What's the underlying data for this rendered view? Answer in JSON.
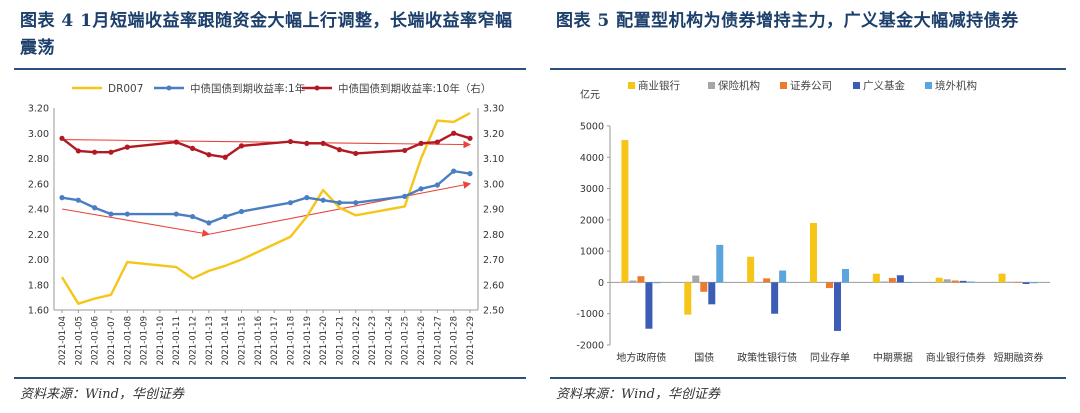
{
  "left": {
    "title": "图表 4   1月短端收益率跟随资金大幅上行调整，长端收益率窄幅震荡",
    "source": "资料来源：Wind，华创证券"
  },
  "right": {
    "title": "图表 5   配置型机构为债券增持主力，广义基金大幅减持债券",
    "source": "资料来源：Wind，华创证券"
  },
  "colors": {
    "dr007": "#f5c518",
    "cgb1y": "#4a7ec2",
    "cgb10y": "#b11a22",
    "trend": "#e8463c",
    "bank": "#f5c518",
    "insurance": "#a6a6a6",
    "securities": "#ec7b2e",
    "fund": "#3b5db5",
    "foreign": "#59a5dd"
  },
  "chart_data": [
    {
      "type": "line",
      "legend": [
        "DR007",
        "中债国债到期收益率:1年",
        "中债国债到期收益率:10年（右）"
      ],
      "legend_position": "top",
      "x": [
        "2021-01-04",
        "2021-01-05",
        "2021-01-06",
        "2021-01-07",
        "2021-01-08",
        "2021-01-09",
        "2021-01-10",
        "2021-01-11",
        "2021-01-12",
        "2021-01-13",
        "2021-01-14",
        "2021-01-15",
        "2021-01-16",
        "2021-01-17",
        "2021-01-18",
        "2021-01-19",
        "2021-01-20",
        "2021-01-21",
        "2021-01-22",
        "2021-01-23",
        "2021-01-24",
        "2021-01-25",
        "2021-01-26",
        "2021-01-27",
        "2021-01-28",
        "2021-01-29"
      ],
      "y_left_ticks": [
        "3.20",
        "3.00",
        "2.80",
        "2.60",
        "2.40",
        "2.20",
        "2.00",
        "1.80",
        "1.60"
      ],
      "y_right_ticks": [
        "3.30",
        "3.20",
        "3.10",
        "3.00",
        "2.90",
        "2.80",
        "2.70",
        "2.60",
        "2.50"
      ],
      "ylim_left": [
        1.6,
        3.2
      ],
      "ylim_right": [
        2.5,
        3.3
      ],
      "series": [
        {
          "name": "DR007",
          "axis": "left",
          "markers": false,
          "values": [
            1.86,
            1.65,
            1.69,
            1.72,
            1.98,
            null,
            null,
            1.94,
            1.85,
            1.91,
            1.95,
            2.0,
            null,
            null,
            2.18,
            2.34,
            2.55,
            2.41,
            2.35,
            null,
            null,
            2.42,
            2.8,
            3.1,
            3.09,
            3.16
          ]
        },
        {
          "name": "中债国债到期收益率:1年",
          "axis": "left",
          "markers": true,
          "values": [
            2.49,
            2.47,
            2.41,
            2.36,
            2.36,
            null,
            null,
            2.36,
            2.34,
            2.29,
            2.34,
            2.38,
            null,
            null,
            2.45,
            2.49,
            2.47,
            2.45,
            2.45,
            null,
            null,
            2.5,
            2.56,
            2.59,
            2.7,
            2.68
          ]
        },
        {
          "name": "中债国债到期收益率:10年（右）",
          "axis": "right",
          "markers": true,
          "values": [
            3.18,
            3.13,
            3.125,
            3.125,
            3.145,
            null,
            null,
            3.165,
            3.14,
            3.115,
            3.105,
            3.15,
            null,
            null,
            3.167,
            3.16,
            3.16,
            3.135,
            3.12,
            null,
            null,
            3.132,
            3.16,
            3.165,
            3.2,
            3.18
          ]
        }
      ],
      "trend_lines": [
        {
          "axis": "right",
          "from": {
            "x": "2021-01-04",
            "y": 3.175
          },
          "to": {
            "x": "2021-01-29",
            "y": 3.155
          }
        },
        {
          "axis": "left",
          "from": {
            "x": "2021-01-04",
            "y": 2.4
          },
          "to": {
            "x": "2021-01-13",
            "y": 2.2
          }
        },
        {
          "axis": "left",
          "from": {
            "x": "2021-01-13",
            "y": 2.2
          },
          "to": {
            "x": "2021-01-29",
            "y": 2.6
          }
        }
      ],
      "grid": false
    },
    {
      "type": "bar",
      "unit": "亿元",
      "categories": [
        "地方政府债",
        "国债",
        "政策性银行债",
        "同业存单",
        "中期票据",
        "商业银行债券",
        "短期融资券"
      ],
      "series": [
        {
          "name": "商业银行",
          "values": [
            4550,
            -1030,
            820,
            1900,
            280,
            150,
            280
          ]
        },
        {
          "name": "保险机构",
          "values": [
            60,
            220,
            10,
            10,
            30,
            100,
            20
          ]
        },
        {
          "name": "证券公司",
          "values": [
            200,
            -300,
            130,
            -180,
            140,
            60,
            20
          ]
        },
        {
          "name": "广义基金",
          "values": [
            -1480,
            -700,
            -1000,
            -1550,
            230,
            50,
            -50
          ]
        },
        {
          "name": "境外机构",
          "values": [
            0,
            1200,
            380,
            430,
            10,
            30,
            0
          ]
        }
      ],
      "y_ticks": [
        "5000",
        "4000",
        "3000",
        "2000",
        "1000",
        "0",
        "-1000",
        "-2000"
      ],
      "ylim": [
        -2000,
        5000
      ],
      "legend_position": "top",
      "grid": false
    }
  ]
}
